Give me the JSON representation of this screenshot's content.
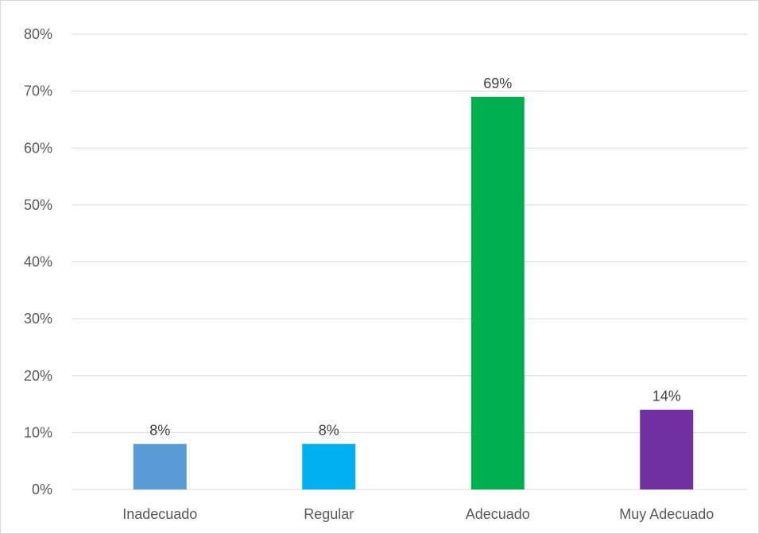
{
  "chart_data": {
    "type": "bar",
    "categories": [
      "Inadecuado",
      "Regular",
      "Adecuado",
      "Muy Adecuado"
    ],
    "values": [
      8,
      8,
      69,
      14
    ],
    "data_labels": [
      "8%",
      "8%",
      "69%",
      "14%"
    ],
    "colors": [
      "#5b9bd5",
      "#00b0f0",
      "#00b050",
      "#7030a0"
    ],
    "ylim": [
      0,
      80
    ],
    "yticks": [
      "0%",
      "10%",
      "20%",
      "30%",
      "40%",
      "50%",
      "60%",
      "70%",
      "80%"
    ],
    "grid": true,
    "legend": "none",
    "title": "",
    "xlabel": "",
    "ylabel": ""
  }
}
